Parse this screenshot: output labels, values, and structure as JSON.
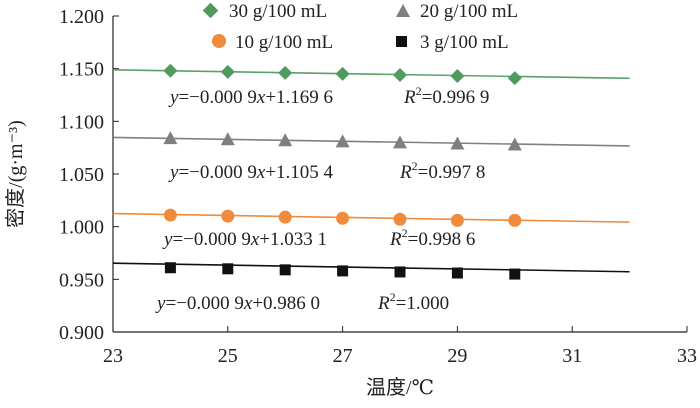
{
  "chart_data": {
    "type": "scatter",
    "xlabel": "温度/℃",
    "ylabel": "密度/(g·m⁻³)",
    "xlim": [
      23,
      33
    ],
    "ylim": [
      0.9,
      1.2
    ],
    "xticks": [
      "23",
      "25",
      "27",
      "29",
      "31",
      "33"
    ],
    "yticks": [
      "0.900",
      "0.950",
      "1.000",
      "1.050",
      "1.100",
      "1.150",
      "1.200"
    ],
    "grid": false,
    "legend_position": "top",
    "x": [
      24,
      25,
      26,
      27,
      28,
      29,
      30
    ],
    "series": [
      {
        "name": "30 g/100 mL",
        "marker": "diamond",
        "marker_color": "#4f9a5e",
        "line_color": "#5aa069",
        "values": [
          1.148,
          1.147,
          1.146,
          1.145,
          1.144,
          1.143,
          1.141
        ],
        "fit": {
          "slope": -0.0009,
          "intercept": 1.1696,
          "x_range": [
            23,
            32
          ]
        },
        "equation_parts": [
          "y",
          "=−0.000 9",
          "x",
          "+1.169 6"
        ],
        "r2_value": "=0.996 9"
      },
      {
        "name": "20 g/100 mL",
        "marker": "triangle",
        "marker_color": "#7f7f7f",
        "line_color": "#808080",
        "values": [
          1.084,
          1.083,
          1.082,
          1.081,
          1.08,
          1.079,
          1.078
        ],
        "fit": {
          "slope": -0.0009,
          "intercept": 1.1054,
          "x_range": [
            23,
            32
          ]
        },
        "equation_parts": [
          "y",
          "=−0.000 9",
          "x",
          "+1.105 4"
        ],
        "r2_value": "=0.997 8"
      },
      {
        "name": "10 g/100 mL",
        "marker": "circle",
        "marker_color": "#f08a3c",
        "line_color": "#f08a3c",
        "values": [
          1.011,
          1.01,
          1.009,
          1.008,
          1.007,
          1.006,
          1.006
        ],
        "fit": {
          "slope": -0.0009,
          "intercept": 1.0331,
          "x_range": [
            23,
            32
          ]
        },
        "equation_parts": [
          "y",
          "=−0.000 9",
          "x",
          "+1.033 1"
        ],
        "r2_value": "=0.998 6"
      },
      {
        "name": "3 g/100 mL",
        "marker": "square",
        "marker_color": "#111111",
        "line_color": "#111111",
        "values": [
          0.961,
          0.96,
          0.959,
          0.958,
          0.957,
          0.956,
          0.955
        ],
        "fit": {
          "slope": -0.0009,
          "intercept": 0.986,
          "x_range": [
            23,
            32
          ]
        },
        "equation_parts": [
          "y",
          "=−0.000 9",
          "x",
          "+0.986 0"
        ],
        "r2_value": "=1.000"
      }
    ]
  }
}
